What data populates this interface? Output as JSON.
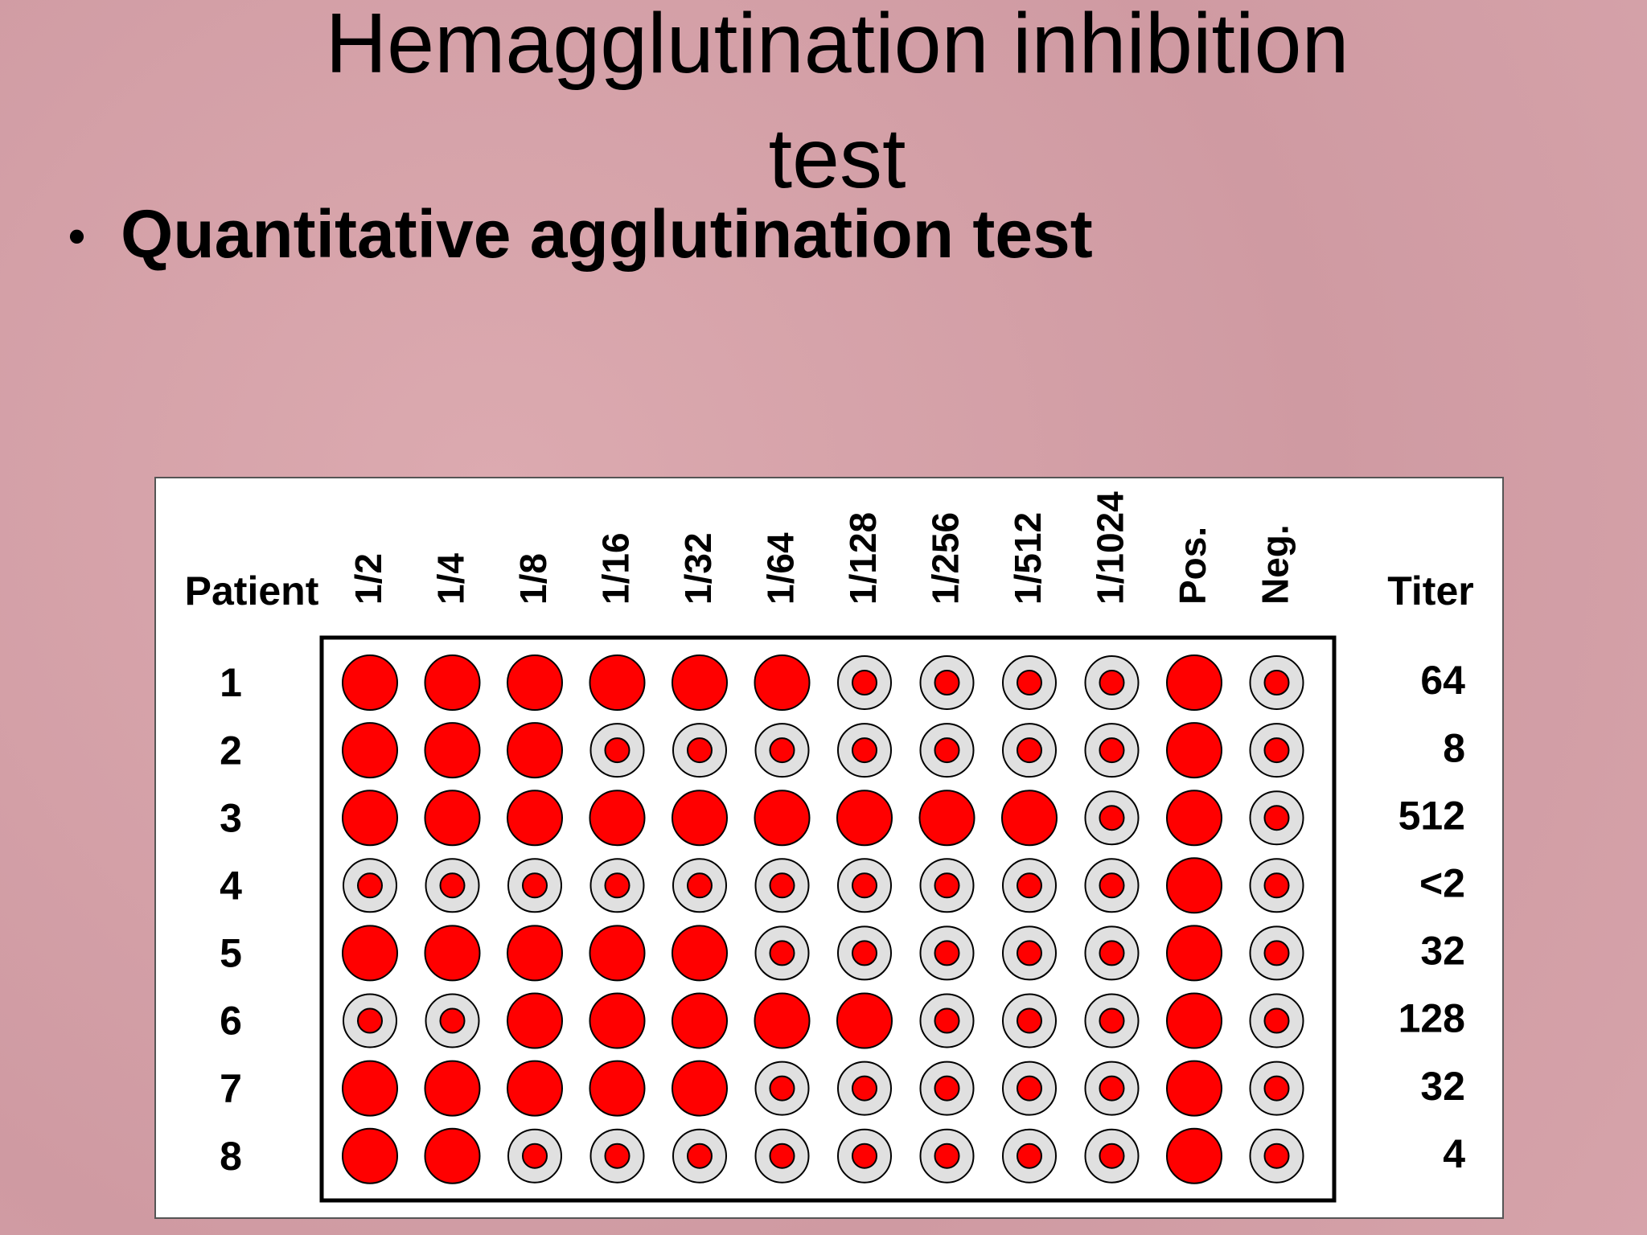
{
  "title": "Hemagglutination inhibition test",
  "bullet": "Quantitative agglutination test",
  "table": {
    "patient_header": "Patient",
    "titer_header": "Titer",
    "columns": [
      "1/2",
      "1/4",
      "1/8",
      "1/16",
      "1/32",
      "1/64",
      "1/128",
      "1/256",
      "1/512",
      "1/1024",
      "Pos.",
      "Neg."
    ],
    "rows": [
      {
        "patient": "1",
        "wells": [
          1,
          1,
          1,
          1,
          1,
          1,
          0,
          0,
          0,
          0,
          1,
          0
        ],
        "titer": "64"
      },
      {
        "patient": "2",
        "wells": [
          1,
          1,
          1,
          0,
          0,
          0,
          0,
          0,
          0,
          0,
          1,
          0
        ],
        "titer": "8"
      },
      {
        "patient": "3",
        "wells": [
          1,
          1,
          1,
          1,
          1,
          1,
          1,
          1,
          1,
          0,
          1,
          0
        ],
        "titer": "512"
      },
      {
        "patient": "4",
        "wells": [
          0,
          0,
          0,
          0,
          0,
          0,
          0,
          0,
          0,
          0,
          1,
          0
        ],
        "titer": "<2"
      },
      {
        "patient": "5",
        "wells": [
          1,
          1,
          1,
          1,
          1,
          0,
          0,
          0,
          0,
          0,
          1,
          0
        ],
        "titer": "32"
      },
      {
        "patient": "6",
        "wells": [
          0,
          0,
          1,
          1,
          1,
          1,
          1,
          0,
          0,
          0,
          1,
          0
        ],
        "titer": "128"
      },
      {
        "patient": "7",
        "wells": [
          1,
          1,
          1,
          1,
          1,
          0,
          0,
          0,
          0,
          0,
          1,
          0
        ],
        "titer": "32"
      },
      {
        "patient": "8",
        "wells": [
          1,
          1,
          0,
          0,
          0,
          0,
          0,
          0,
          0,
          0,
          1,
          0
        ],
        "titer": "4"
      }
    ]
  }
}
